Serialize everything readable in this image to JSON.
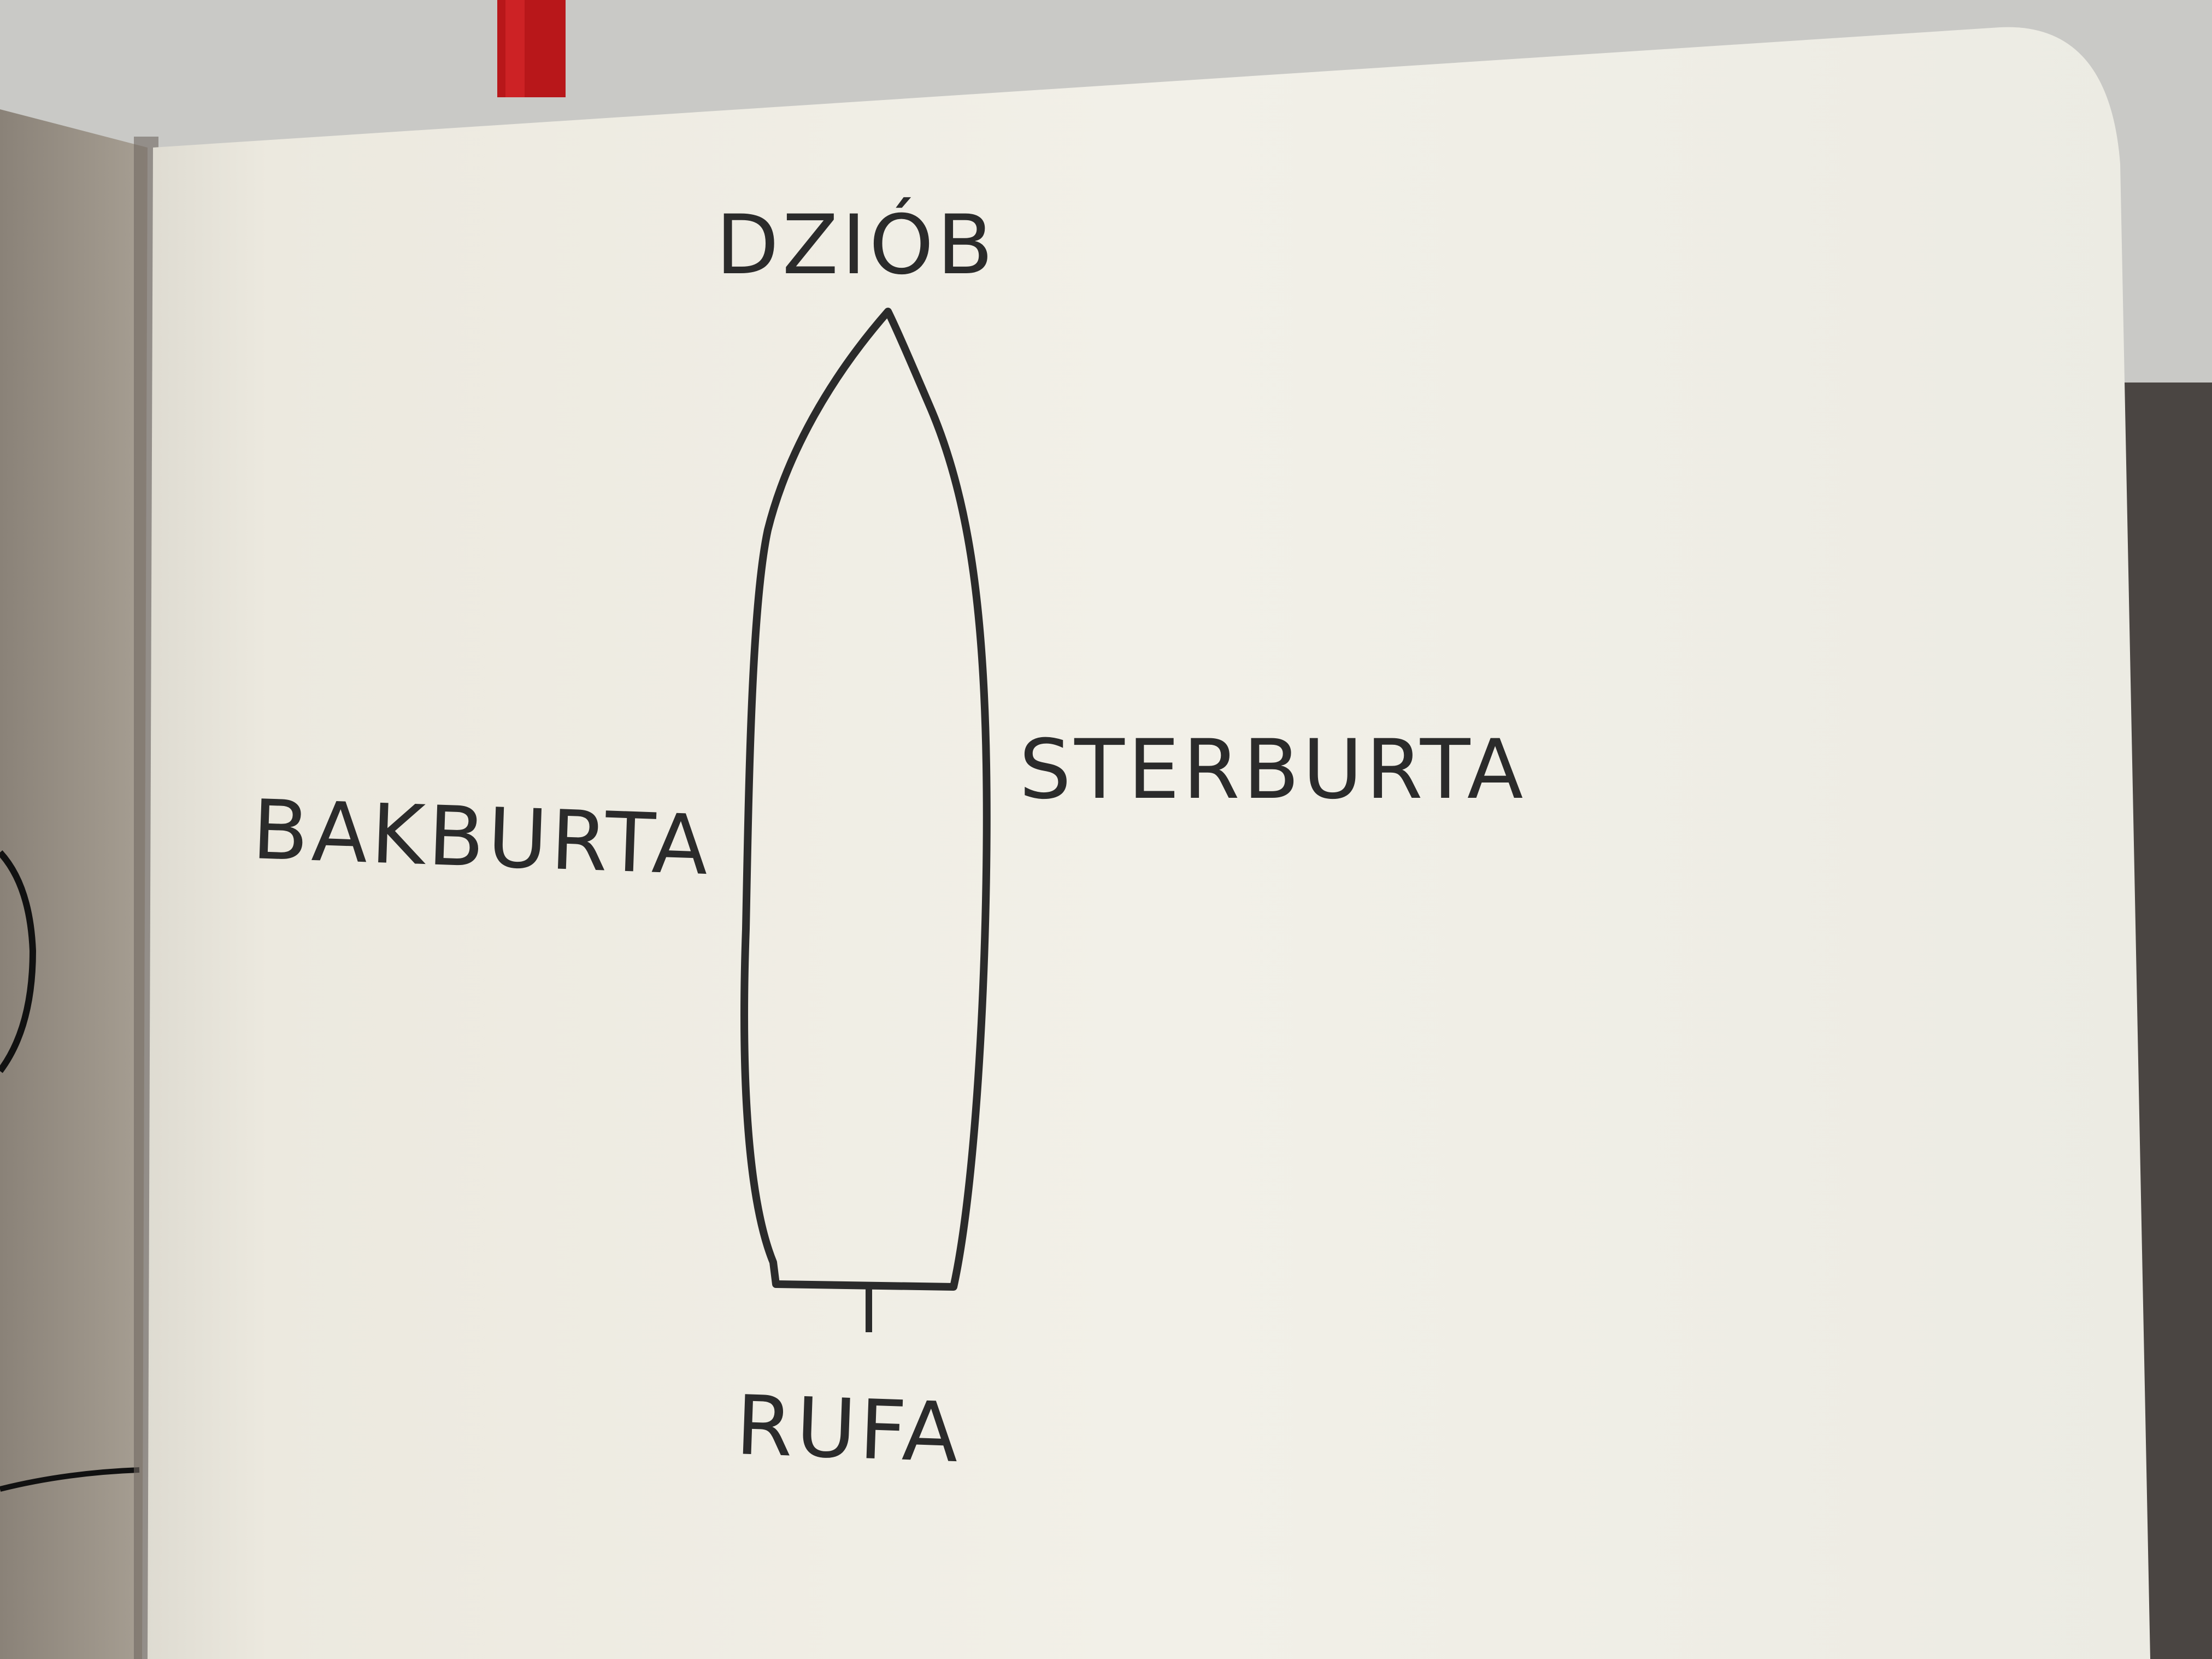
{
  "diagram": {
    "labels": {
      "bow": "DZIÓB",
      "stern": "RUFA",
      "port": "BAKBURTA",
      "starboard": "STERBURTA"
    }
  },
  "colors": {
    "ink": "#2b2b2b",
    "paper": "#f1efe6",
    "ribbon": "#c01818",
    "table": "#c9c9c6",
    "cover": "#8f877c"
  }
}
